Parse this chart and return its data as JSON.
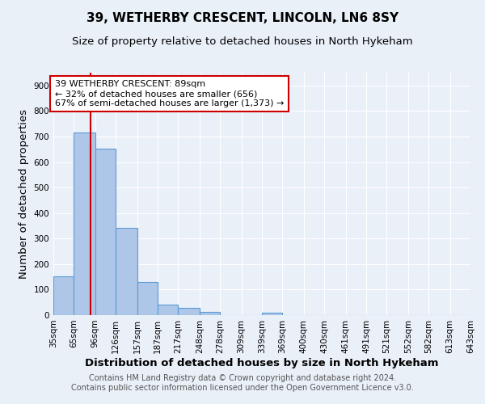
{
  "title": "39, WETHERBY CRESCENT, LINCOLN, LN6 8SY",
  "subtitle": "Size of property relative to detached houses in North Hykeham",
  "xlabel": "Distribution of detached houses by size in North Hykeham",
  "ylabel": "Number of detached properties",
  "footer_line1": "Contains HM Land Registry data © Crown copyright and database right 2024.",
  "footer_line2": "Contains public sector information licensed under the Open Government Licence v3.0.",
  "bins": [
    35,
    65,
    96,
    126,
    157,
    187,
    217,
    248,
    278,
    309,
    339,
    369,
    400,
    430,
    461,
    491,
    521,
    552,
    582,
    613,
    643
  ],
  "bar_labels": [
    "35sqm",
    "65sqm",
    "96sqm",
    "126sqm",
    "157sqm",
    "187sqm",
    "217sqm",
    "248sqm",
    "278sqm",
    "309sqm",
    "339sqm",
    "369sqm",
    "400sqm",
    "430sqm",
    "461sqm",
    "491sqm",
    "521sqm",
    "552sqm",
    "582sqm",
    "613sqm",
    "643sqm"
  ],
  "counts": [
    152,
    716,
    652,
    341,
    130,
    42,
    30,
    12,
    0,
    0,
    10,
    0,
    0,
    0,
    0,
    0,
    0,
    0,
    0,
    0
  ],
  "bar_color": "#aec6e8",
  "bar_edge_color": "#5b9bd5",
  "property_line_x": 89,
  "property_line_color": "#cc0000",
  "annotation_text": "39 WETHERBY CRESCENT: 89sqm\n← 32% of detached houses are smaller (656)\n67% of semi-detached houses are larger (1,373) →",
  "annotation_box_color": "#ffffff",
  "annotation_box_edge_color": "#cc0000",
  "ylim": [
    0,
    950
  ],
  "background_color": "#eaf0f8",
  "grid_color": "#ffffff",
  "title_fontsize": 11,
  "subtitle_fontsize": 9.5,
  "axis_label_fontsize": 9.5,
  "tick_fontsize": 7.5,
  "annotation_fontsize": 8,
  "footer_fontsize": 7
}
